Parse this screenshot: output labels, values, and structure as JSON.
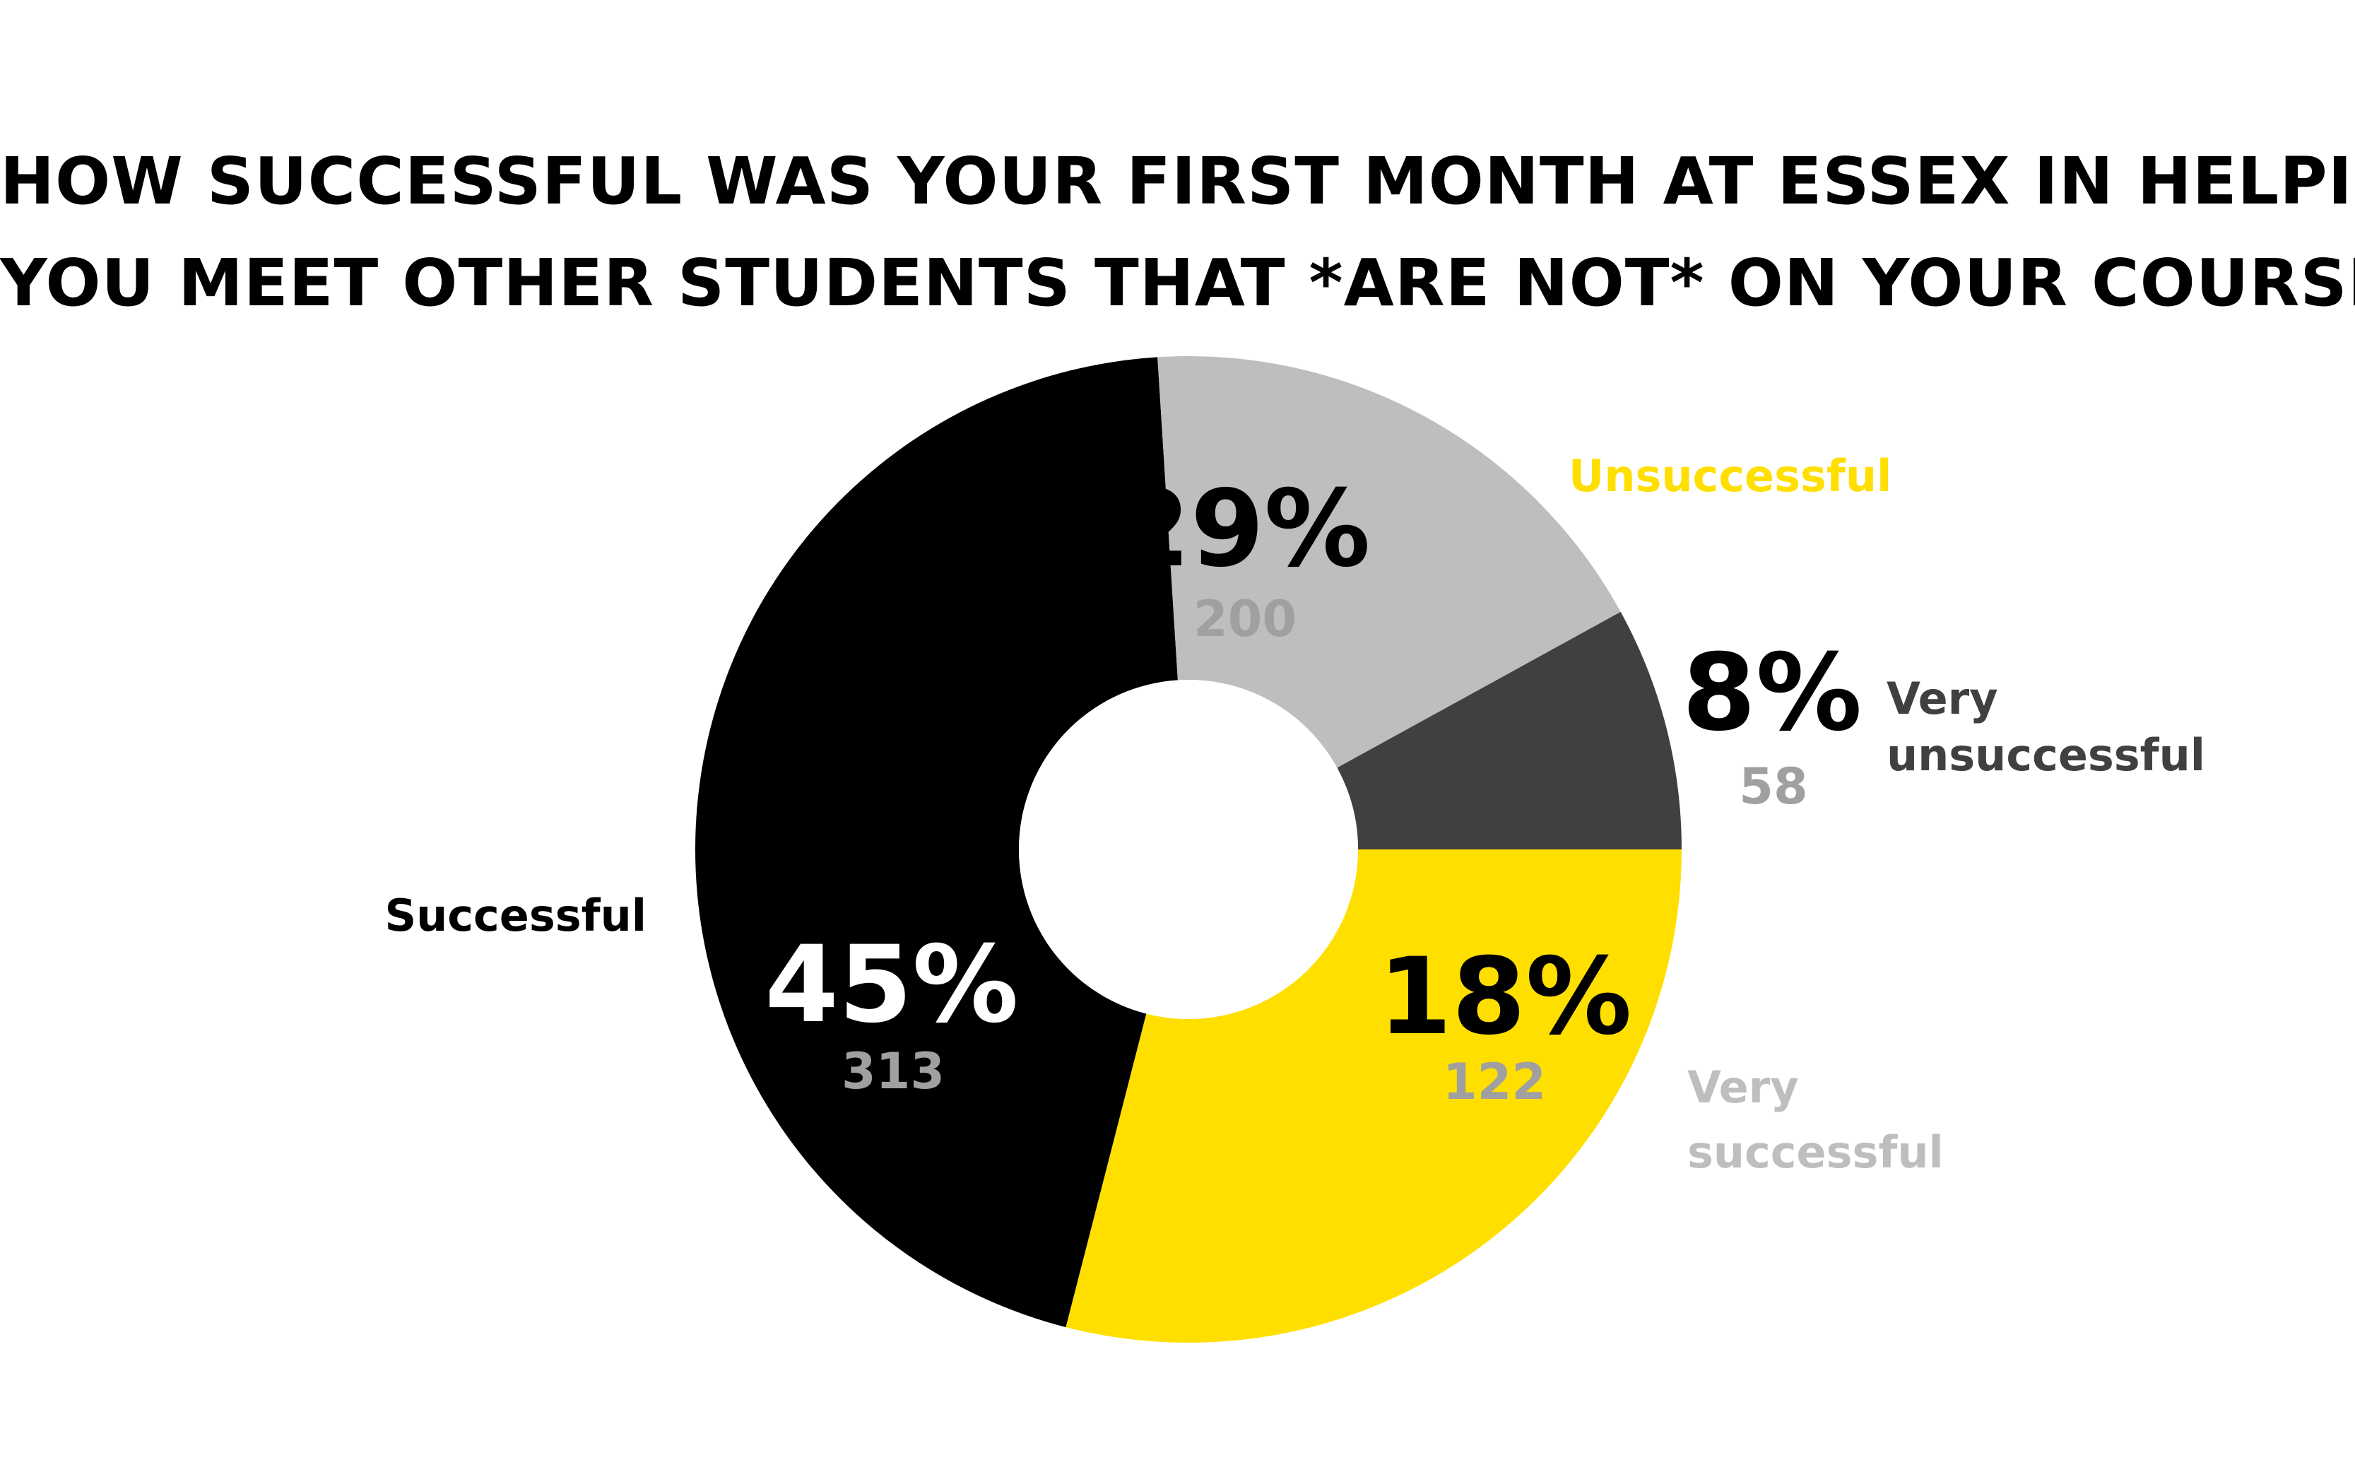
{
  "chart_data": {
    "type": "pie",
    "title": "HOW SUCCESSFUL WAS YOUR FIRST MONTH AT ESSEX IN HELPING YOU MEET OTHER STUDENTS THAT *ARE NOT* ON YOUR COURSE?",
    "title_lines": [
      "HOW SUCCESSFUL WAS YOUR FIRST MONTH AT ESSEX IN HELPING",
      "YOU MEET OTHER STUDENTS THAT *ARE NOT* ON YOUR COURSE?"
    ],
    "donut": true,
    "slices": [
      {
        "key": "very-unsuccessful",
        "label_lines": [
          "Very",
          "unsuccessful"
        ],
        "percent": 8,
        "percent_label": "8%",
        "count": 58,
        "count_label": "58",
        "color": "#404040",
        "label_color": "#404040",
        "percent_color": "#000000",
        "count_color": "#a0a0a0"
      },
      {
        "key": "unsuccessful",
        "label_lines": [
          "Unsuccessful"
        ],
        "percent": 29,
        "percent_label": "29%",
        "count": 200,
        "count_label": "200",
        "color": "#ffdf00",
        "label_color": "#ffdf00",
        "percent_color": "#000000",
        "count_color": "#a0a0a0"
      },
      {
        "key": "successful",
        "label_lines": [
          "Successful"
        ],
        "percent": 45,
        "percent_label": "45%",
        "count": 313,
        "count_label": "313",
        "color": "#000000",
        "label_color": "#000000",
        "percent_color": "#ffffff",
        "count_color": "#a0a0a0"
      },
      {
        "key": "very-successful",
        "label_lines": [
          "Very",
          "successful"
        ],
        "percent": 18,
        "percent_label": "18%",
        "count": 122,
        "count_label": "122",
        "color": "#bebebe",
        "label_color": "#bebebe",
        "percent_color": "#000000",
        "count_color": "#a0a0a0"
      }
    ],
    "legend": "none"
  }
}
